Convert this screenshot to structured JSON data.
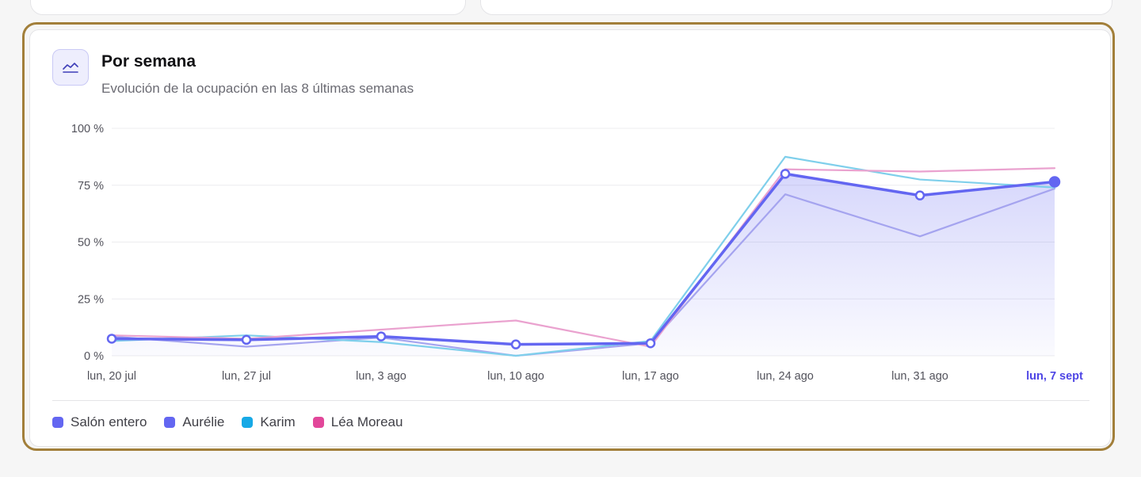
{
  "card": {
    "icon": "line-chart-icon",
    "title": "Por semana",
    "subtitle": "Evolución de la ocupación en las 8 últimas semanas"
  },
  "colors": {
    "accent": "#6366f1",
    "frame": "#a27f3a",
    "salon": "#6366f1",
    "aurelie": "#a5a4ef",
    "karim": "#7fcfeb",
    "lea": "#eaa2cf",
    "legend_salon": "#6366f1",
    "legend_aurelie": "#6366f1",
    "legend_karim": "#17a9e6",
    "legend_lea": "#e2479a"
  },
  "chart_data": {
    "type": "line",
    "categories": [
      "lun, 20 jul",
      "lun, 27 jul",
      "lun, 3 ago",
      "lun, 10 ago",
      "lun, 17 ago",
      "lun, 24 ago",
      "lun, 31 ago",
      "lun, 7 sept"
    ],
    "highlighted_category": "lun, 7 sept",
    "y_ticks": [
      "100 %",
      "75 %",
      "50 %",
      "25 %",
      "0 %"
    ],
    "ylim": [
      0,
      100
    ],
    "grid": true,
    "legend_position": "bottom-left",
    "series": [
      {
        "name": "Salón entero",
        "key": "salon",
        "values": [
          7.5,
          7,
          8.5,
          5,
          5.5,
          80,
          70.5,
          76.5
        ],
        "fill": true,
        "markers": true
      },
      {
        "name": "Aurélie",
        "key": "aurelie",
        "values": [
          8.5,
          4,
          8,
          0,
          5.5,
          71,
          52.5,
          73.5
        ]
      },
      {
        "name": "Karim",
        "key": "karim",
        "values": [
          6.5,
          9,
          6,
          0,
          6.5,
          87.5,
          77.5,
          74
        ]
      },
      {
        "name": "Léa Moreau",
        "key": "lea",
        "values": [
          9,
          7.5,
          11.5,
          15.5,
          4,
          82,
          81,
          82.5
        ]
      }
    ]
  },
  "legend": [
    {
      "label": "Salón entero",
      "color_key": "legend_salon"
    },
    {
      "label": "Aurélie",
      "color_key": "legend_aurelie"
    },
    {
      "label": "Karim",
      "color_key": "legend_karim"
    },
    {
      "label": "Léa Moreau",
      "color_key": "legend_lea"
    }
  ]
}
